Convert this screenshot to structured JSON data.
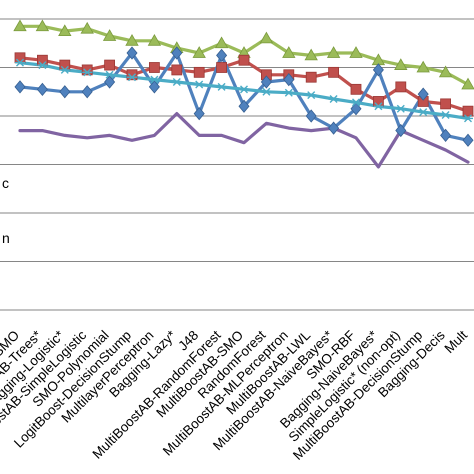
{
  "chart_data": {
    "type": "line",
    "ylim": [
      0,
      6
    ],
    "grid": true,
    "categories": [
      "SMO",
      "MultiBoostAB-Trees*",
      "Bagging-Logistic*",
      "MultiBoostAB-SimpleLogistic",
      "SMO-Polynomial",
      "LogitBoost-DecisionStump",
      "MultilayerPerceptron",
      "Bagging-Lazy*",
      "J48",
      "MultiBoostAB-RandomForest",
      "MultiBoostAB-SMO",
      "RandomForest",
      "MultiBoostAB-MLPerceptron",
      "MultiBoostAB-LWL",
      "MultiBoostAB-NaiveBayes*",
      "SMO-RBF",
      "Bagging-NaiveBayes*",
      "SimpleLogistic* (non-opt)",
      "MultiBoostAB-DecisionStump",
      "Bagging-Decis",
      "Mult"
    ],
    "side_labels": [
      "c",
      "n"
    ],
    "series": [
      {
        "color": "#9BBB59",
        "marker": "triangle",
        "values": [
          5.85,
          5.85,
          5.75,
          5.8,
          5.65,
          5.55,
          5.55,
          5.4,
          5.3,
          5.5,
          5.3,
          5.6,
          5.3,
          5.25,
          5.3,
          5.3,
          5.15,
          5.05,
          5.0,
          4.9,
          4.65
        ]
      },
      {
        "color": "#C0504D",
        "marker": "square",
        "values": [
          5.2,
          5.15,
          5.05,
          4.95,
          5.05,
          4.85,
          5.0,
          4.95,
          4.9,
          5.0,
          5.15,
          4.85,
          4.85,
          4.8,
          4.9,
          4.55,
          4.3,
          4.6,
          4.3,
          4.25,
          4.1
        ]
      },
      {
        "color": "#4F81BD",
        "marker": "diamond",
        "values": [
          4.6,
          4.55,
          4.5,
          4.5,
          4.7,
          5.3,
          4.6,
          5.3,
          4.05,
          5.25,
          4.2,
          4.7,
          4.75,
          4.0,
          3.75,
          4.15,
          4.95,
          3.7,
          4.45,
          3.6,
          3.5
        ]
      },
      {
        "color": "#4BACC6",
        "marker": "asterisk",
        "values": [
          5.1,
          5.05,
          4.95,
          4.9,
          4.85,
          4.8,
          4.75,
          4.7,
          4.65,
          4.6,
          4.55,
          4.5,
          4.48,
          4.43,
          4.35,
          4.28,
          4.2,
          4.15,
          4.08,
          4.02,
          3.95
        ]
      },
      {
        "color": "#8064A2",
        "marker": "none",
        "values": [
          3.7,
          3.7,
          3.6,
          3.55,
          3.6,
          3.5,
          3.6,
          4.05,
          3.6,
          3.6,
          3.45,
          3.85,
          3.75,
          3.7,
          3.75,
          3.55,
          2.95,
          3.7,
          3.5,
          3.3,
          3.05
        ]
      }
    ]
  }
}
